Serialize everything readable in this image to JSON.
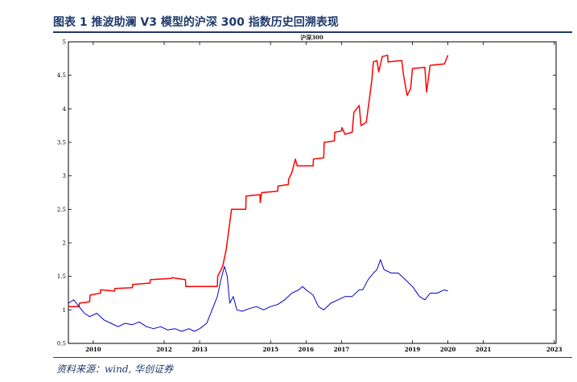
{
  "caption": "图表 1   推波助澜 V3 模型的沪深 300 指数历史回溯表现",
  "source": "资料来源：wind, 华创证券",
  "chart_data": {
    "type": "line",
    "title": "沪深300",
    "xlabel": "",
    "ylabel": "",
    "xlim": [
      2009.3,
      2023.05
    ],
    "ylim": [
      0.5,
      5
    ],
    "yticks": [
      "0.5",
      "1",
      "1.5",
      "2",
      "2.5",
      "3",
      "3.5",
      "4",
      "4.5",
      "5"
    ],
    "xticks": [
      "2010",
      "2012",
      "2013",
      "2015",
      "2016",
      "2017",
      "2019",
      "2020",
      "2021",
      "2023"
    ],
    "grid": false,
    "series": [
      {
        "color": "#ff0000",
        "points": [
          [
            2009.3,
            1.05
          ],
          [
            2009.6,
            1.05
          ],
          [
            2009.61,
            1.1
          ],
          [
            2009.9,
            1.12
          ],
          [
            2009.91,
            1.22
          ],
          [
            2010.2,
            1.25
          ],
          [
            2010.21,
            1.3
          ],
          [
            2010.6,
            1.28
          ],
          [
            2010.61,
            1.32
          ],
          [
            2011.1,
            1.33
          ],
          [
            2011.11,
            1.38
          ],
          [
            2011.6,
            1.4
          ],
          [
            2011.61,
            1.45
          ],
          [
            2012.2,
            1.47
          ],
          [
            2012.21,
            1.48
          ],
          [
            2012.6,
            1.45
          ],
          [
            2012.61,
            1.35
          ],
          [
            2013.5,
            1.35
          ],
          [
            2013.51,
            1.5
          ],
          [
            2013.65,
            1.65
          ],
          [
            2013.75,
            1.9
          ],
          [
            2013.85,
            2.3
          ],
          [
            2013.9,
            2.5
          ],
          [
            2014.3,
            2.5
          ],
          [
            2014.31,
            2.7
          ],
          [
            2014.7,
            2.72
          ],
          [
            2014.71,
            2.6
          ],
          [
            2014.75,
            2.75
          ],
          [
            2015.2,
            2.77
          ],
          [
            2015.21,
            2.85
          ],
          [
            2015.5,
            2.87
          ],
          [
            2015.51,
            2.95
          ],
          [
            2015.6,
            3.05
          ],
          [
            2015.7,
            3.25
          ],
          [
            2015.75,
            3.15
          ],
          [
            2016.2,
            3.15
          ],
          [
            2016.21,
            3.25
          ],
          [
            2016.5,
            3.27
          ],
          [
            2016.51,
            3.5
          ],
          [
            2016.8,
            3.52
          ],
          [
            2016.81,
            3.65
          ],
          [
            2017.0,
            3.67
          ],
          [
            2017.01,
            3.72
          ],
          [
            2017.1,
            3.62
          ],
          [
            2017.3,
            3.65
          ],
          [
            2017.35,
            3.95
          ],
          [
            2017.5,
            4.05
          ],
          [
            2017.55,
            3.75
          ],
          [
            2017.7,
            3.8
          ],
          [
            2017.85,
            4.4
          ],
          [
            2017.9,
            4.7
          ],
          [
            2018.0,
            4.72
          ],
          [
            2018.05,
            4.55
          ],
          [
            2018.15,
            4.78
          ],
          [
            2018.3,
            4.8
          ],
          [
            2018.31,
            4.7
          ],
          [
            2018.7,
            4.72
          ],
          [
            2018.75,
            4.5
          ],
          [
            2018.85,
            4.2
          ],
          [
            2018.95,
            4.3
          ],
          [
            2019.0,
            4.6
          ],
          [
            2019.35,
            4.62
          ],
          [
            2019.4,
            4.25
          ],
          [
            2019.5,
            4.65
          ],
          [
            2019.9,
            4.67
          ],
          [
            2020.0,
            4.8
          ]
        ]
      },
      {
        "color": "#0000cc",
        "points": [
          [
            2009.3,
            1.1
          ],
          [
            2009.45,
            1.15
          ],
          [
            2009.6,
            1.05
          ],
          [
            2009.75,
            0.95
          ],
          [
            2009.9,
            0.9
          ],
          [
            2010.1,
            0.95
          ],
          [
            2010.3,
            0.85
          ],
          [
            2010.5,
            0.8
          ],
          [
            2010.7,
            0.75
          ],
          [
            2010.9,
            0.8
          ],
          [
            2011.1,
            0.78
          ],
          [
            2011.3,
            0.82
          ],
          [
            2011.5,
            0.75
          ],
          [
            2011.7,
            0.72
          ],
          [
            2011.9,
            0.75
          ],
          [
            2012.1,
            0.7
          ],
          [
            2012.3,
            0.72
          ],
          [
            2012.5,
            0.68
          ],
          [
            2012.7,
            0.72
          ],
          [
            2012.85,
            0.68
          ],
          [
            2013.0,
            0.72
          ],
          [
            2013.2,
            0.8
          ],
          [
            2013.35,
            1.0
          ],
          [
            2013.5,
            1.2
          ],
          [
            2013.6,
            1.45
          ],
          [
            2013.7,
            1.65
          ],
          [
            2013.78,
            1.5
          ],
          [
            2013.85,
            1.1
          ],
          [
            2013.95,
            1.2
          ],
          [
            2014.05,
            1.0
          ],
          [
            2014.2,
            0.98
          ],
          [
            2014.4,
            1.02
          ],
          [
            2014.6,
            1.05
          ],
          [
            2014.8,
            1.0
          ],
          [
            2015.0,
            1.05
          ],
          [
            2015.2,
            1.08
          ],
          [
            2015.4,
            1.15
          ],
          [
            2015.6,
            1.25
          ],
          [
            2015.8,
            1.3
          ],
          [
            2015.9,
            1.35
          ],
          [
            2016.0,
            1.3
          ],
          [
            2016.2,
            1.22
          ],
          [
            2016.35,
            1.05
          ],
          [
            2016.5,
            1.0
          ],
          [
            2016.7,
            1.1
          ],
          [
            2016.9,
            1.15
          ],
          [
            2017.1,
            1.2
          ],
          [
            2017.3,
            1.2
          ],
          [
            2017.5,
            1.3
          ],
          [
            2017.6,
            1.3
          ],
          [
            2017.75,
            1.45
          ],
          [
            2017.9,
            1.55
          ],
          [
            2018.0,
            1.6
          ],
          [
            2018.1,
            1.75
          ],
          [
            2018.2,
            1.6
          ],
          [
            2018.4,
            1.55
          ],
          [
            2018.6,
            1.55
          ],
          [
            2018.8,
            1.45
          ],
          [
            2019.0,
            1.35
          ],
          [
            2019.2,
            1.2
          ],
          [
            2019.35,
            1.15
          ],
          [
            2019.5,
            1.25
          ],
          [
            2019.7,
            1.25
          ],
          [
            2019.9,
            1.3
          ],
          [
            2020.0,
            1.28
          ]
        ]
      }
    ]
  }
}
